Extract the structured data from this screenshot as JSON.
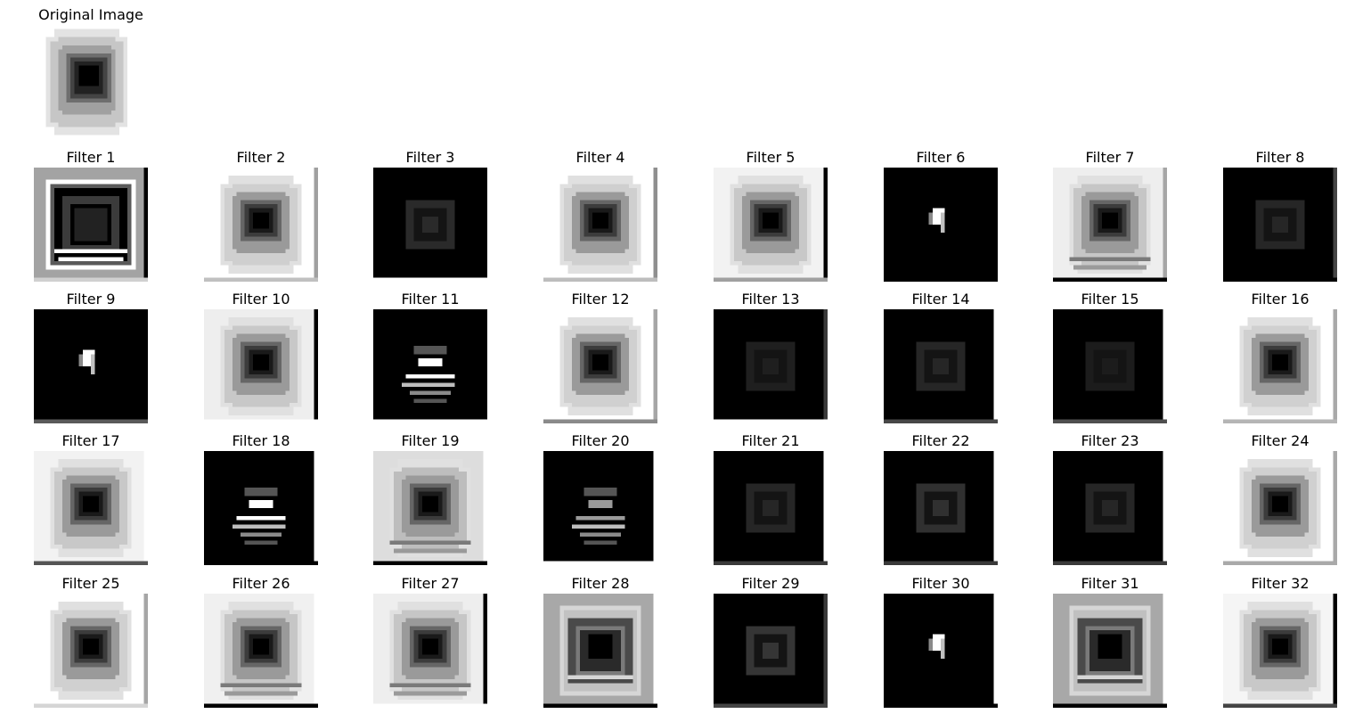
{
  "original": {
    "title": "Original Image"
  },
  "filters": [
    {
      "label": "Filter 1",
      "style": "ring-dark",
      "bg": "#a3a3a3",
      "edgeR": "#000000",
      "edgeB": "#d0d0d0",
      "inner": "#ffffff",
      "center": "#000000"
    },
    {
      "label": "Filter 2",
      "style": "blob",
      "bg": "#ffffff",
      "edgeR": "#a0a0a0",
      "edgeB": "#c0c0c0",
      "inner": "#cfcfcf",
      "center": "#000000"
    },
    {
      "label": "Filter 3",
      "style": "dark-faint",
      "bg": "#000000",
      "edgeR": "#000000",
      "edgeB": "#ffffff",
      "inner": "#2a2a2a",
      "center": "#000000"
    },
    {
      "label": "Filter 4",
      "style": "blob",
      "bg": "#ffffff",
      "edgeR": "#8f8f8f",
      "edgeB": "#bdbdbd",
      "inner": "#cfcfcf",
      "center": "#000000"
    },
    {
      "label": "Filter 5",
      "style": "blob",
      "bg": "#f2f2f2",
      "edgeR": "#000000",
      "edgeB": "#a0a0a0",
      "inner": "#c8c8c8",
      "center": "#000000"
    },
    {
      "label": "Filter 6",
      "style": "dark-spot",
      "bg": "#000000",
      "edgeR": "#000000",
      "edgeB": "#000000",
      "inner": "#ffffff",
      "center": "#ffffff"
    },
    {
      "label": "Filter 7",
      "style": "blob-ring",
      "bg": "#eeeeee",
      "edgeR": "#a6a6a6",
      "edgeB": "#000000",
      "inner": "#c6c6c6",
      "center": "#000000"
    },
    {
      "label": "Filter 8",
      "style": "dark-faint",
      "bg": "#000000",
      "edgeR": "#444444",
      "edgeB": "#000000",
      "inner": "#262626",
      "center": "#000000"
    },
    {
      "label": "Filter 9",
      "style": "dark-spot",
      "bg": "#000000",
      "edgeR": "#000000",
      "edgeB": "#5a5a5a",
      "inner": "#ffffff",
      "center": "#ffffff"
    },
    {
      "label": "Filter 10",
      "style": "blob",
      "bg": "#eeeeee",
      "edgeR": "#000000",
      "edgeB": "#ffffff",
      "inner": "#c8c8c8",
      "center": "#000000"
    },
    {
      "label": "Filter 11",
      "style": "dark-stripes",
      "bg": "#000000",
      "edgeR": "#000000",
      "edgeB": "#ffffff",
      "inner": "#ffffff",
      "center": "#ffffff"
    },
    {
      "label": "Filter 12",
      "style": "blob",
      "bg": "#ffffff",
      "edgeR": "#a6a6a6",
      "edgeB": "#8a8a8a",
      "inner": "#d0d0d0",
      "center": "#000000"
    },
    {
      "label": "Filter 13",
      "style": "dark-faint",
      "bg": "#000000",
      "edgeR": "#3a3a3a",
      "edgeB": "#ffffff",
      "inner": "#1f1f1f",
      "center": "#000000"
    },
    {
      "label": "Filter 14",
      "style": "dark-faint",
      "bg": "#000000",
      "edgeR": "#ffffff",
      "edgeB": "#474747",
      "inner": "#262626",
      "center": "#000000"
    },
    {
      "label": "Filter 15",
      "style": "dark-faint",
      "bg": "#000000",
      "edgeR": "#ffffff",
      "edgeB": "#4f4f4f",
      "inner": "#1c1c1c",
      "center": "#000000"
    },
    {
      "label": "Filter 16",
      "style": "blob",
      "bg": "#ffffff",
      "edgeR": "#a9a9a9",
      "edgeB": "#b5b5b5",
      "inner": "#d0d0d0",
      "center": "#000000"
    },
    {
      "label": "Filter 17",
      "style": "blob",
      "bg": "#f2f2f2",
      "edgeR": "#ffffff",
      "edgeB": "#555555",
      "inner": "#c8c8c8",
      "center": "#000000"
    },
    {
      "label": "Filter 18",
      "style": "dark-stripes",
      "bg": "#000000",
      "edgeR": "#ffffff",
      "edgeB": "#000000",
      "inner": "#ffffff",
      "center": "#ffffff"
    },
    {
      "label": "Filter 19",
      "style": "blob-ring",
      "bg": "#dddddd",
      "edgeR": "#ffffff",
      "edgeB": "#000000",
      "inner": "#bdbdbd",
      "center": "#000000"
    },
    {
      "label": "Filter 20",
      "style": "dark-stripes-dim",
      "bg": "#000000",
      "edgeR": "#ffffff",
      "edgeB": "#ffffff",
      "inner": "#9a9a9a",
      "center": "#9a9a9a"
    },
    {
      "label": "Filter 21",
      "style": "dark-faint",
      "bg": "#000000",
      "edgeR": "#ffffff",
      "edgeB": "#3a3a3a",
      "inner": "#262626",
      "center": "#000000"
    },
    {
      "label": "Filter 22",
      "style": "dark-faint",
      "bg": "#000000",
      "edgeR": "#ffffff",
      "edgeB": "#393939",
      "inner": "#303030",
      "center": "#000000"
    },
    {
      "label": "Filter 23",
      "style": "dark-faint",
      "bg": "#000000",
      "edgeR": "#ffffff",
      "edgeB": "#3a3a3a",
      "inner": "#262626",
      "center": "#000000"
    },
    {
      "label": "Filter 24",
      "style": "blob",
      "bg": "#ffffff",
      "edgeR": "#a9a9a9",
      "edgeB": "#a9a9a9",
      "inner": "#d0d0d0",
      "center": "#000000"
    },
    {
      "label": "Filter 25",
      "style": "blob",
      "bg": "#ffffff",
      "edgeR": "#a6a6a6",
      "edgeB": "#d5d5d5",
      "inner": "#d0d0d0",
      "center": "#000000"
    },
    {
      "label": "Filter 26",
      "style": "blob-ring",
      "bg": "#f0f0f0",
      "edgeR": "#ffffff",
      "edgeB": "#000000",
      "inner": "#c6c6c6",
      "center": "#000000"
    },
    {
      "label": "Filter 27",
      "style": "blob-ring",
      "bg": "#eeeeee",
      "edgeR": "#000000",
      "edgeB": "#ffffff",
      "inner": "#c6c6c6",
      "center": "#000000"
    },
    {
      "label": "Filter 28",
      "style": "ring-gray",
      "bg": "#a8a8a8",
      "edgeR": "#ffffff",
      "edgeB": "#000000",
      "inner": "#c2c2c2",
      "center": "#000000"
    },
    {
      "label": "Filter 29",
      "style": "dark-faint",
      "bg": "#000000",
      "edgeR": "#3a3a3a",
      "edgeB": "#444444",
      "inner": "#353535",
      "center": "#000000"
    },
    {
      "label": "Filter 30",
      "style": "dark-spot",
      "bg": "#000000",
      "edgeR": "#ffffff",
      "edgeB": "#000000",
      "inner": "#ffffff",
      "center": "#ffffff"
    },
    {
      "label": "Filter 31",
      "style": "ring-gray",
      "bg": "#a8a8a8",
      "edgeR": "#ffffff",
      "edgeB": "#000000",
      "inner": "#c0c0c0",
      "center": "#000000"
    },
    {
      "label": "Filter 32",
      "style": "blob",
      "bg": "#f5f5f5",
      "edgeR": "#000000",
      "edgeB": "#444444",
      "inner": "#c8c8c8",
      "center": "#000000"
    }
  ]
}
